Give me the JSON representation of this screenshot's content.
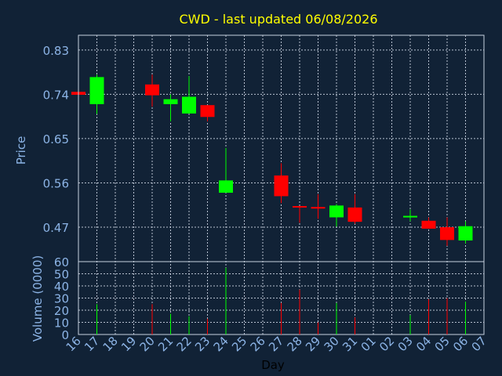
{
  "title": "CWD - last updated 06/08/2026",
  "colors": {
    "background": "#112236",
    "grid": "#c8d2e0",
    "axis_text": "#8cb4e6",
    "title": "#ffff00",
    "xlabel": "#000000",
    "up": "#00ff00",
    "down": "#ff0000",
    "neutral": "#ffffff"
  },
  "chart_data": [
    {
      "type": "candlestick",
      "ylabel": "Price",
      "ylim": [
        0.4,
        0.86
      ],
      "yticks": [
        "0.83",
        "0.74",
        "0.65",
        "0.56",
        "0.47"
      ],
      "grid": true,
      "categories": [
        "16",
        "17",
        "18",
        "19",
        "20",
        "21",
        "22",
        "23",
        "24",
        "25",
        "26",
        "27",
        "28",
        "29",
        "30",
        "31",
        "01",
        "02",
        "03",
        "04",
        "05",
        "06",
        "07"
      ],
      "candles": [
        {
          "x": "16",
          "open": 0.745,
          "high": 0.745,
          "low": 0.739,
          "close": 0.739
        },
        {
          "x": "17",
          "open": 0.72,
          "high": 0.78,
          "low": 0.7,
          "close": 0.775
        },
        {
          "x": "20",
          "open": 0.76,
          "high": 0.78,
          "low": 0.715,
          "close": 0.738
        },
        {
          "x": "21",
          "open": 0.72,
          "high": 0.74,
          "low": 0.685,
          "close": 0.73
        },
        {
          "x": "22",
          "open": 0.701,
          "high": 0.777,
          "low": 0.701,
          "close": 0.735
        },
        {
          "x": "23",
          "open": 0.718,
          "high": 0.718,
          "low": 0.685,
          "close": 0.694
        },
        {
          "x": "24",
          "open": 0.54,
          "high": 0.631,
          "low": 0.54,
          "close": 0.565
        },
        {
          "x": "27",
          "open": 0.575,
          "high": 0.6,
          "low": 0.519,
          "close": 0.533
        },
        {
          "x": "28",
          "open": 0.513,
          "high": 0.513,
          "low": 0.479,
          "close": 0.51
        },
        {
          "x": "29",
          "open": 0.511,
          "high": 0.537,
          "low": 0.487,
          "close": 0.51
        },
        {
          "x": "30",
          "open": 0.49,
          "high": 0.517,
          "low": 0.471,
          "close": 0.514
        },
        {
          "x": "31",
          "open": 0.51,
          "high": 0.537,
          "low": 0.477,
          "close": 0.481
        },
        {
          "x": "03",
          "open": 0.491,
          "high": 0.506,
          "low": 0.482,
          "close": 0.493
        },
        {
          "x": "04",
          "open": 0.483,
          "high": 0.49,
          "low": 0.467,
          "close": 0.467
        },
        {
          "x": "05",
          "open": 0.47,
          "high": 0.49,
          "low": 0.432,
          "close": 0.444
        },
        {
          "x": "06",
          "open": 0.443,
          "high": 0.482,
          "low": 0.437,
          "close": 0.472
        }
      ]
    },
    {
      "type": "bar",
      "ylabel": "Volume (0000)",
      "xlabel": "Day",
      "ylim": [
        0,
        60
      ],
      "yticks": [
        "60",
        "50",
        "40",
        "30",
        "20",
        "10",
        "0"
      ],
      "grid": true,
      "categories": [
        "16",
        "17",
        "18",
        "19",
        "20",
        "21",
        "22",
        "23",
        "24",
        "25",
        "26",
        "27",
        "28",
        "29",
        "30",
        "31",
        "01",
        "02",
        "03",
        "04",
        "05",
        "06",
        "07"
      ],
      "bars": [
        {
          "x": "17",
          "value": 25,
          "color": "up"
        },
        {
          "x": "20",
          "value": 25,
          "color": "down"
        },
        {
          "x": "21",
          "value": 17,
          "color": "up"
        },
        {
          "x": "22",
          "value": 15,
          "color": "up"
        },
        {
          "x": "23",
          "value": 13,
          "color": "down"
        },
        {
          "x": "24",
          "value": 55,
          "color": "up"
        },
        {
          "x": "27",
          "value": 26,
          "color": "down"
        },
        {
          "x": "28",
          "value": 37,
          "color": "down"
        },
        {
          "x": "29",
          "value": 10,
          "color": "down"
        },
        {
          "x": "30",
          "value": 26,
          "color": "up"
        },
        {
          "x": "31",
          "value": 14,
          "color": "down"
        },
        {
          "x": "03",
          "value": 16,
          "color": "up"
        },
        {
          "x": "04",
          "value": 29,
          "color": "down"
        },
        {
          "x": "05",
          "value": 30,
          "color": "down"
        },
        {
          "x": "06",
          "value": 27,
          "color": "up"
        }
      ]
    }
  ]
}
